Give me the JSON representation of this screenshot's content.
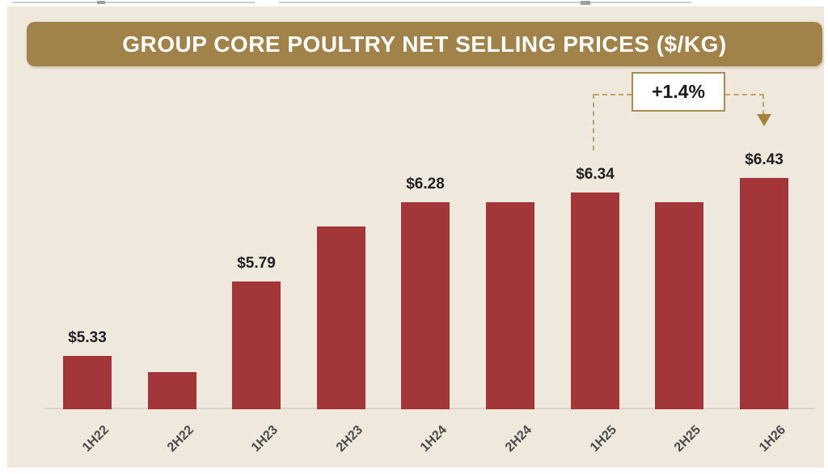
{
  "header": {
    "title": "GROUP CORE POULTRY NET SELLING PRICES ($/KG)"
  },
  "chart_data": {
    "type": "bar",
    "title": "GROUP CORE POULTRY NET SELLING PRICES ($/KG)",
    "categories": [
      "1H22",
      "2H22",
      "1H23",
      "2H23",
      "1H24",
      "2H24",
      "1H25",
      "2H25",
      "1H26"
    ],
    "values": [
      5.33,
      5.23,
      5.79,
      6.13,
      6.28,
      6.28,
      6.34,
      6.28,
      6.43
    ],
    "data_labels": [
      "$5.33",
      "",
      "$5.79",
      "",
      "$6.28",
      "",
      "$6.34",
      "",
      "$6.43"
    ],
    "xlabel": "",
    "ylabel": "",
    "ylim": [
      5.0,
      7.0
    ],
    "y_axis_visible": false,
    "gridlines": false,
    "legend": "none",
    "bar_color": "#a33638",
    "annotation": {
      "text": "+1.4%",
      "from_category": "1H25",
      "to_category": "1H26"
    }
  },
  "colors": {
    "page_background": "#ffffff",
    "slide_background": "#efe9dd",
    "banner_gold": "#a18349",
    "title_text": "#ffffff",
    "bar_red": "#a33638",
    "axis_line": "#d9d4c9",
    "value_label_text": "#1f1f1f",
    "category_label_text": "#4a4a4a",
    "callout_border_gold": "#a98b52",
    "callout_background": "#ffffff",
    "dashed_connector_gold": "#c2a269",
    "arrow_gold": "#a5823e"
  }
}
